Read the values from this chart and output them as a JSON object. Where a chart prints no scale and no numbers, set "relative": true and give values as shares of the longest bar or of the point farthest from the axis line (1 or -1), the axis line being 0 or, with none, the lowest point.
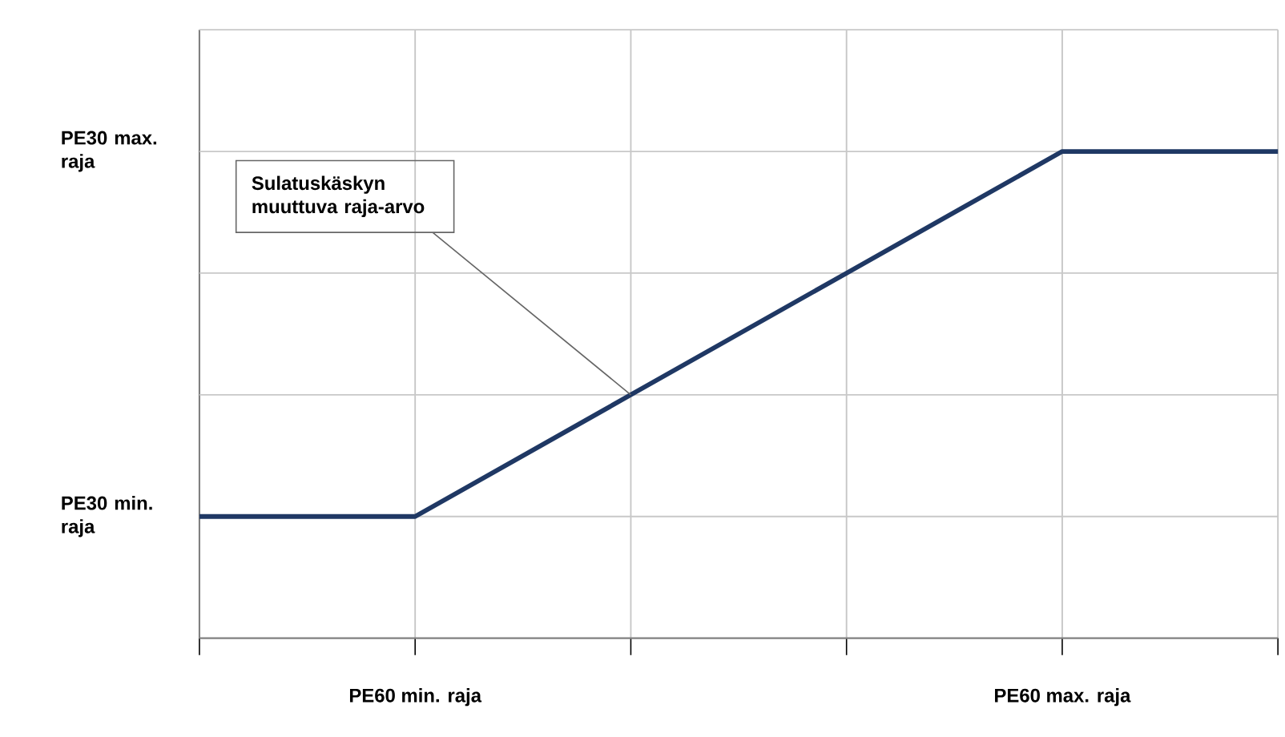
{
  "chart_data": {
    "type": "line",
    "relative": true,
    "categories": [
      null,
      "PE60 min. raja",
      null,
      null,
      "PE60 max. raja",
      null
    ],
    "series": [
      {
        "color": "#1f3864",
        "values": [
          0.25,
          0.25,
          0.5,
          0.75,
          1,
          1
        ]
      }
    ],
    "grid": "x",
    "ref_lines": [
      {
        "axis": "y",
        "value": 0.25,
        "label": "PE30 min. raja",
        "color": "#c8c8c8"
      },
      {
        "axis": "y",
        "value": 0.5,
        "label": null,
        "color": "#c8c8c8"
      },
      {
        "axis": "y",
        "value": 0.75,
        "label": null,
        "color": "#c8c8c8"
      },
      {
        "axis": "y",
        "value": 1,
        "label": "PE30 max. raja",
        "color": "#c8c8c8"
      },
      {
        "axis": "y",
        "value": 1.25,
        "label": null,
        "color": "#c8c8c8"
      }
    ],
    "annotations": [
      "Sulatuskäskyn muuttuva raja-arvo"
    ]
  }
}
